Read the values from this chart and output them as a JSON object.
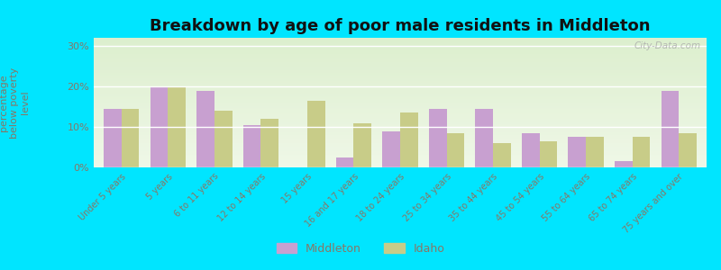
{
  "title": "Breakdown by age of poor male residents in Middleton",
  "ylabel": "percentage\nbelow poverty\nlevel",
  "categories": [
    "Under 5 years",
    "5 years",
    "6 to 11 years",
    "12 to 14 years",
    "15 years",
    "16 and 17 years",
    "18 to 24 years",
    "25 to 34 years",
    "35 to 44 years",
    "45 to 54 years",
    "55 to 64 years",
    "65 to 74 years",
    "75 years and over"
  ],
  "middleton": [
    14.5,
    20.0,
    19.0,
    10.5,
    0.0,
    2.5,
    9.0,
    14.5,
    14.5,
    8.5,
    7.5,
    1.5,
    19.0
  ],
  "idaho": [
    14.5,
    20.0,
    14.0,
    12.0,
    16.5,
    11.0,
    13.5,
    8.5,
    6.0,
    6.5,
    7.5,
    7.5,
    8.5
  ],
  "middleton_color": "#c8a0d0",
  "idaho_color": "#c8cc88",
  "bg_top": "#d8edc8",
  "bg_bottom": "#f0f8e8",
  "outer_background": "#00e5ff",
  "ylim": [
    0,
    32
  ],
  "yticks": [
    0,
    10,
    20,
    30
  ],
  "ytick_labels": [
    "0%",
    "10%",
    "20%",
    "30%"
  ],
  "bar_width": 0.38,
  "title_fontsize": 13,
  "legend_labels": [
    "Middleton",
    "Idaho"
  ],
  "watermark": "City-Data.com",
  "tick_color": "#887766",
  "label_color": "#887766"
}
